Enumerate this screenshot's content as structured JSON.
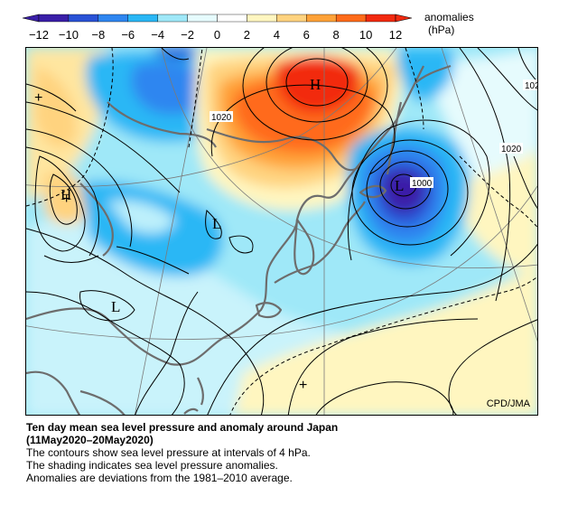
{
  "legend": {
    "title": "anomalies",
    "unit": "(hPa)",
    "ticks": [
      "−12",
      "−10",
      "−8",
      "−6",
      "−4",
      "−2",
      "0",
      "2",
      "4",
      "6",
      "8",
      "10",
      "12"
    ],
    "colors": [
      "#3a1fa8",
      "#2a52d6",
      "#2f86f0",
      "#2ab7f5",
      "#9fe8f8",
      "#e6fbfd",
      "#ffffff",
      "#fff6c0",
      "#ffd37f",
      "#ffa238",
      "#ff6b1a",
      "#f22a10"
    ]
  },
  "map": {
    "credit": "CPD/JMA",
    "pressure_labels": [
      "1020",
      "1000",
      "1020",
      "102"
    ],
    "centers": [
      "H",
      "L",
      "H",
      "L",
      "L"
    ],
    "markers": [
      "+",
      "+",
      "+"
    ]
  },
  "caption": {
    "title_line1": "Ten day mean sea level pressure and anomaly around Japan",
    "title_line2": "(11May2020–20May2020)",
    "desc_line1": "The contours show sea level pressure at intervals of 4 hPa.",
    "desc_line2": "The shading indicates sea level pressure anomalies.",
    "desc_line3": "Anomalies are deviations from the 1981–2010 average."
  }
}
